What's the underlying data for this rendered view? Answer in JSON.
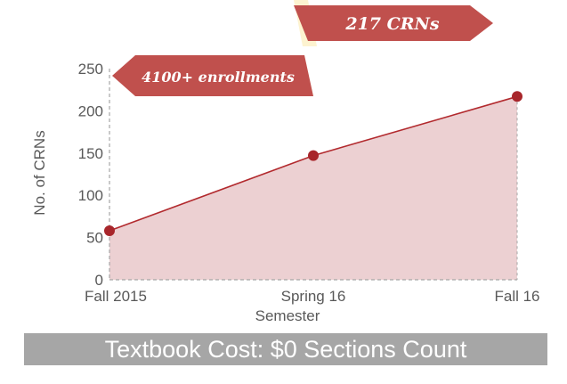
{
  "chart_data": {
    "type": "area",
    "categories": [
      "Fall 2015",
      "Spring 16",
      "Fall 16"
    ],
    "values": [
      58,
      147,
      217
    ],
    "xlabel": "Semester",
    "ylabel": "No. of CRNs",
    "ylim": [
      0,
      250
    ],
    "yticks": [
      0,
      50,
      100,
      150,
      200,
      250
    ],
    "ytick_labels": [
      "0",
      "50",
      "100",
      "150",
      "200",
      "250"
    ],
    "grid": false,
    "colors": {
      "line": "#b22a2e",
      "marker": "#a8262b",
      "fill": "#ecd0d2",
      "banner": "#c0504d",
      "banner_fold": "#fdf3d0",
      "axis": "#a6a6a6"
    },
    "annotations": [
      {
        "text": "4100+ enrollments",
        "anchor_category": "Fall 2015"
      },
      {
        "text": "217 CRNs",
        "anchor_category": "Fall 16"
      }
    ]
  },
  "footer": {
    "title": "Textbook Cost: $0 Sections Count"
  }
}
